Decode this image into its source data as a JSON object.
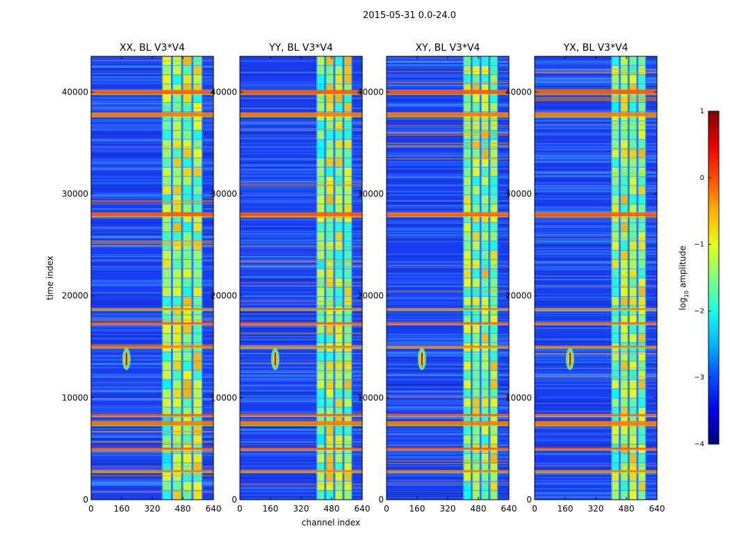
{
  "figure": {
    "suptitle": "2015-05-31 0.0-24.0"
  },
  "chart_data": {
    "type": "heatmap",
    "panels": [
      {
        "title": "XX, BL V3*V4",
        "left_band_channels": [
          370,
          585
        ],
        "spike_channel": 185
      },
      {
        "title": "YY, BL V3*V4",
        "left_band_channels": [
          400,
          590
        ],
        "spike_channel": 185
      },
      {
        "title": "XY, BL V3*V4",
        "left_band_channels": [
          400,
          585
        ],
        "spike_channel": 185
      },
      {
        "title": "YX, BL V3*V4",
        "left_band_channels": [
          400,
          585
        ],
        "spike_channel": 185
      }
    ],
    "xlabel": "channel index",
    "ylabel": "time index",
    "xlim": [
      0,
      640
    ],
    "ylim": [
      0,
      43500
    ],
    "xticks": [
      "0",
      "160",
      "320",
      "480",
      "640"
    ],
    "yticks": [
      "0",
      "10000",
      "20000",
      "30000",
      "40000"
    ],
    "ytick_values": [
      0,
      10000,
      20000,
      30000,
      40000
    ],
    "xtick_values": [
      0,
      160,
      320,
      480,
      640
    ],
    "spike_time": 13800,
    "flagged_rows": [
      40000,
      37800,
      28000,
      18700,
      17300,
      15000,
      8300,
      7500,
      5000,
      2800
    ],
    "colorbar": {
      "label": "log10 amplitude",
      "label_main": "log",
      "label_sub": "10",
      "label_rest": " amplitude",
      "ticks": [
        "1",
        "0",
        "−1",
        "−2",
        "−3",
        "−4"
      ],
      "range": [
        -4,
        1
      ],
      "colormap": "jet"
    }
  }
}
